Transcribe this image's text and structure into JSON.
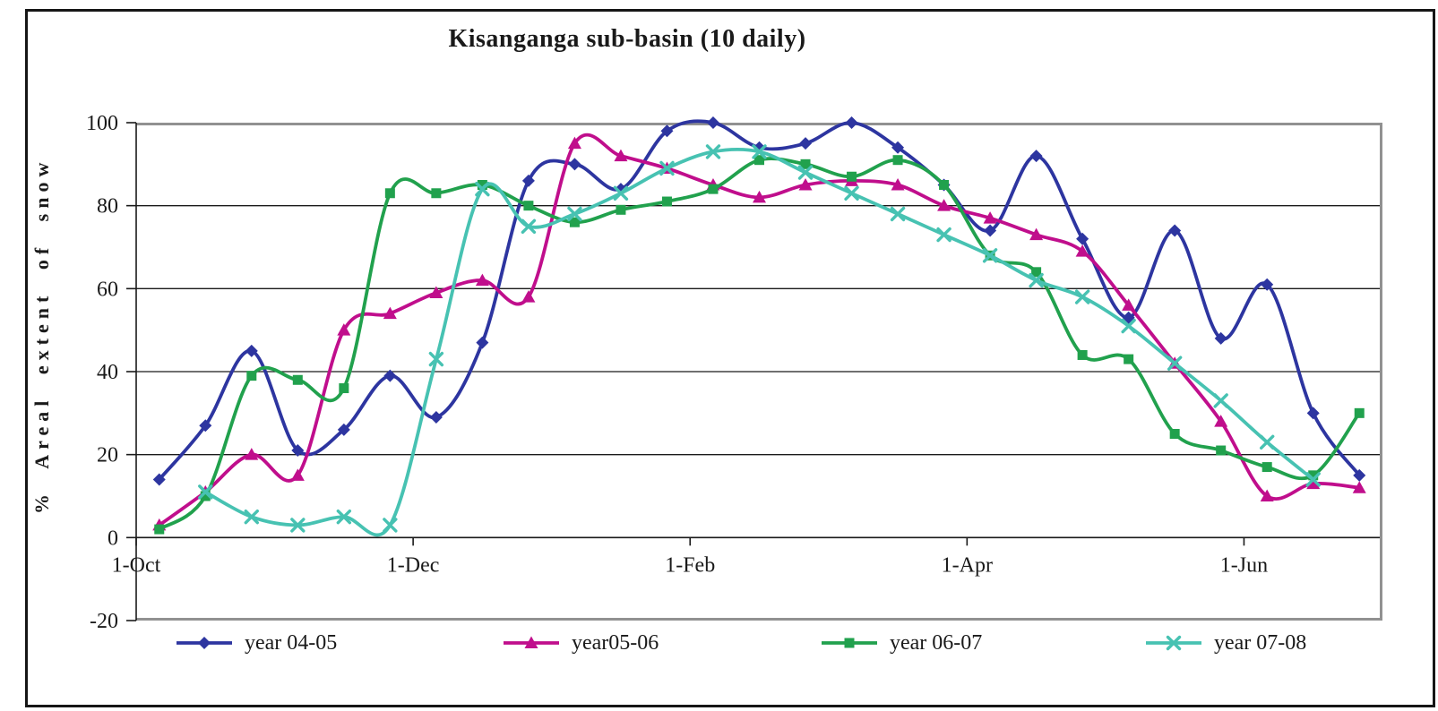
{
  "figure": {
    "title": "Kisanganga sub-basin (10 daily)"
  },
  "y_axis": {
    "title": "% Areal extent of snow",
    "tick_labels": [
      "100",
      "80",
      "60",
      "40",
      "20",
      "0",
      "-20"
    ],
    "tick_values": [
      100,
      80,
      60,
      40,
      20,
      0,
      -20
    ],
    "min": -20,
    "max": 100
  },
  "x_axis": {
    "tick_labels": [
      "1-Oct",
      "1-Dec",
      "1-Feb",
      "1-Apr",
      "1-Jun"
    ],
    "tick_every": 6
  },
  "chart_data": {
    "type": "line",
    "title": "Kisanganga sub-basin (10 daily)",
    "xlabel": "",
    "ylabel": "% Areal extent of snow",
    "ylim": [
      -20,
      100
    ],
    "grid": true,
    "smooth_lines": true,
    "legend_position": "bottom",
    "categories": [
      "1-Oct",
      "11-Oct",
      "21-Oct",
      "1-Nov",
      "11-Nov",
      "21-Nov",
      "1-Dec",
      "11-Dec",
      "21-Dec",
      "1-Jan",
      "11-Jan",
      "21-Jan",
      "1-Feb",
      "11-Feb",
      "21-Feb",
      "1-Mar",
      "11-Mar",
      "21-Mar",
      "1-Apr",
      "11-Apr",
      "21-Apr",
      "1-May",
      "11-May",
      "21-May",
      "1-Jun",
      "11-Jun",
      "21-Jun"
    ],
    "x_tick_labels_shown": [
      "1-Oct",
      "1-Dec",
      "1-Feb",
      "1-Apr",
      "1-Jun"
    ],
    "series": [
      {
        "name": "year 04-05",
        "color": "#2D35A0",
        "marker": "diamond",
        "values": [
          14,
          27,
          45,
          21,
          26,
          39,
          29,
          47,
          86,
          90,
          84,
          98,
          100,
          94,
          95,
          100,
          94,
          85,
          74,
          92,
          72,
          53,
          74,
          48,
          61,
          30,
          15
        ]
      },
      {
        "name": "year05-06",
        "color": "#C00E8C",
        "marker": "triangle",
        "values": [
          3,
          11,
          20,
          15,
          50,
          54,
          59,
          62,
          58,
          95,
          92,
          89,
          85,
          82,
          85,
          86,
          85,
          80,
          77,
          73,
          69,
          56,
          42,
          28,
          10,
          13,
          12
        ]
      },
      {
        "name": "year 06-07",
        "color": "#21A14D",
        "marker": "square",
        "values": [
          2,
          10,
          39,
          38,
          36,
          83,
          83,
          85,
          80,
          76,
          79,
          81,
          84,
          91,
          90,
          87,
          91,
          85,
          68,
          64,
          44,
          43,
          25,
          21,
          17,
          15,
          30
        ]
      },
      {
        "name": "year 07-08",
        "color": "#47C2B2",
        "marker": "x",
        "values": [
          null,
          11,
          5,
          3,
          5,
          3,
          43,
          84,
          75,
          78,
          83,
          89,
          93,
          93,
          88,
          83,
          78,
          73,
          68,
          62,
          58,
          51,
          42,
          33,
          23,
          14,
          null
        ]
      }
    ]
  },
  "colors": {
    "plot_frame": "#919191",
    "gridline": "#1a1a1a",
    "axis": "#1a1a1a"
  }
}
